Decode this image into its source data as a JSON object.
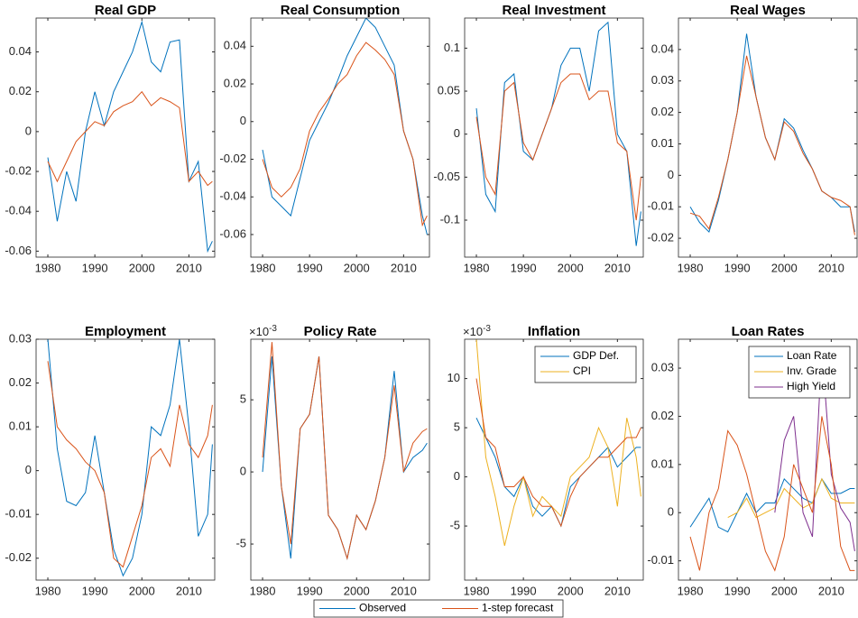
{
  "chart_data": [
    {
      "type": "line",
      "title": "Real GDP",
      "legend": "south outside",
      "x": [
        1980,
        1982,
        1984,
        1986,
        1988,
        1990,
        1992,
        1994,
        1996,
        1998,
        2000,
        2002,
        2004,
        2006,
        2008,
        2010,
        2012,
        2014,
        2015
      ],
      "xlim": [
        1977.5,
        2015.5
      ],
      "xticks": [
        1980,
        1990,
        2000,
        2010
      ],
      "ylim": [
        -0.063,
        0.057
      ],
      "yticks": [
        -0.06,
        -0.04,
        -0.02,
        0,
        0.02,
        0.04
      ],
      "series": [
        {
          "name": "Observed",
          "color": "#0072bd",
          "values": [
            -0.013,
            -0.045,
            -0.02,
            -0.035,
            0.0,
            0.02,
            0.003,
            0.02,
            0.03,
            0.04,
            0.055,
            0.035,
            0.03,
            0.045,
            0.046,
            -0.025,
            -0.015,
            -0.06,
            -0.055
          ]
        },
        {
          "name": "1-step forecast",
          "color": "#d95319",
          "values": [
            -0.015,
            -0.025,
            -0.015,
            -0.005,
            0.0,
            0.005,
            0.003,
            0.01,
            0.013,
            0.015,
            0.02,
            0.013,
            0.017,
            0.015,
            0.012,
            -0.025,
            -0.02,
            -0.027,
            -0.025
          ]
        }
      ]
    },
    {
      "type": "line",
      "title": "Real Consumption",
      "x": [
        1980,
        1982,
        1984,
        1986,
        1988,
        1990,
        1992,
        1994,
        1996,
        1998,
        2000,
        2002,
        2004,
        2006,
        2008,
        2010,
        2012,
        2014,
        2015
      ],
      "xlim": [
        1977.5,
        2015.5
      ],
      "xticks": [
        1980,
        1990,
        2000,
        2010
      ],
      "ylim": [
        -0.072,
        0.055
      ],
      "yticks": [
        -0.06,
        -0.04,
        -0.02,
        0,
        0.02,
        0.04
      ],
      "series": [
        {
          "color": "#0072bd",
          "values": [
            -0.015,
            -0.04,
            -0.045,
            -0.05,
            -0.03,
            -0.01,
            0.0,
            0.01,
            0.022,
            0.035,
            0.045,
            0.055,
            0.05,
            0.04,
            0.03,
            -0.005,
            -0.02,
            -0.05,
            -0.06
          ]
        },
        {
          "color": "#d95319",
          "values": [
            -0.02,
            -0.035,
            -0.04,
            -0.035,
            -0.025,
            -0.005,
            0.005,
            0.012,
            0.02,
            0.025,
            0.035,
            0.042,
            0.038,
            0.033,
            0.025,
            -0.005,
            -0.02,
            -0.055,
            -0.05
          ]
        }
      ]
    },
    {
      "type": "line",
      "title": "Real Investment",
      "x": [
        1980,
        1982,
        1984,
        1986,
        1988,
        1990,
        1992,
        1994,
        1996,
        1998,
        2000,
        2002,
        2004,
        2006,
        2008,
        2010,
        2012,
        2014,
        2015
      ],
      "xlim": [
        1977.5,
        2015.5
      ],
      "xticks": [
        1980,
        1990,
        2000,
        2010
      ],
      "ylim": [
        -0.143,
        0.135
      ],
      "yticks": [
        -0.1,
        -0.05,
        0,
        0.05,
        0.1
      ],
      "series": [
        {
          "color": "#0072bd",
          "values": [
            0.03,
            -0.07,
            -0.09,
            0.06,
            0.07,
            -0.02,
            -0.03,
            0.0,
            0.03,
            0.08,
            0.1,
            0.1,
            0.05,
            0.12,
            0.13,
            0.0,
            -0.02,
            -0.13,
            -0.09
          ]
        },
        {
          "color": "#d95319",
          "values": [
            0.02,
            -0.05,
            -0.07,
            0.05,
            0.06,
            -0.01,
            -0.03,
            0.0,
            0.03,
            0.06,
            0.07,
            0.07,
            0.04,
            0.05,
            0.05,
            -0.01,
            -0.02,
            -0.1,
            -0.05
          ]
        }
      ]
    },
    {
      "type": "line",
      "title": "Real Wages",
      "x": [
        1980,
        1982,
        1984,
        1986,
        1988,
        1990,
        1992,
        1994,
        1996,
        1998,
        2000,
        2002,
        2004,
        2006,
        2008,
        2010,
        2012,
        2014,
        2015
      ],
      "xlim": [
        1977.5,
        2015.5
      ],
      "xticks": [
        1980,
        1990,
        2000,
        2010
      ],
      "ylim": [
        -0.026,
        0.05
      ],
      "yticks": [
        -0.02,
        -0.01,
        0,
        0.01,
        0.02,
        0.03,
        0.04
      ],
      "series": [
        {
          "color": "#0072bd",
          "values": [
            -0.01,
            -0.015,
            -0.018,
            -0.008,
            0.005,
            0.02,
            0.045,
            0.025,
            0.012,
            0.005,
            0.018,
            0.015,
            0.008,
            0.002,
            -0.005,
            -0.007,
            -0.01,
            -0.01,
            -0.018
          ]
        },
        {
          "color": "#d95319",
          "values": [
            -0.012,
            -0.013,
            -0.017,
            -0.007,
            0.005,
            0.02,
            0.038,
            0.025,
            0.012,
            0.005,
            0.017,
            0.014,
            0.007,
            0.002,
            -0.005,
            -0.007,
            -0.008,
            -0.01,
            -0.019
          ]
        }
      ]
    },
    {
      "type": "line",
      "title": "Employment",
      "x": [
        1980,
        1982,
        1984,
        1986,
        1988,
        1990,
        1992,
        1994,
        1996,
        1998,
        2000,
        2002,
        2004,
        2006,
        2008,
        2010,
        2012,
        2014,
        2015
      ],
      "xlim": [
        1977.5,
        2015.5
      ],
      "xticks": [
        1980,
        1990,
        2000,
        2010
      ],
      "ylim": [
        -0.025,
        0.03
      ],
      "yticks": [
        -0.02,
        -0.01,
        0,
        0.01,
        0.02,
        0.03
      ],
      "series": [
        {
          "color": "#0072bd",
          "values": [
            0.03,
            0.005,
            -0.007,
            -0.008,
            -0.005,
            0.008,
            -0.005,
            -0.018,
            -0.024,
            -0.02,
            -0.01,
            0.01,
            0.008,
            0.015,
            0.03,
            0.01,
            -0.015,
            -0.01,
            0.006
          ]
        },
        {
          "color": "#d95319",
          "values": [
            0.025,
            0.01,
            0.007,
            0.005,
            0.002,
            0.0,
            -0.005,
            -0.02,
            -0.022,
            -0.015,
            -0.008,
            0.003,
            0.005,
            0.001,
            0.015,
            0.006,
            0.003,
            0.008,
            0.015
          ]
        }
      ]
    },
    {
      "type": "line",
      "title": "Policy Rate",
      "y_exponent": {
        "base": "×10",
        "power": "-3"
      },
      "x": [
        1980,
        1982,
        1984,
        1986,
        1988,
        1990,
        1992,
        1994,
        1996,
        1998,
        2000,
        2002,
        2004,
        2006,
        2008,
        2010,
        2012,
        2014,
        2015
      ],
      "xlim": [
        1977.5,
        2015.5
      ],
      "xticks": [
        1980,
        1990,
        2000,
        2010
      ],
      "ylim": [
        -7.5,
        9.2
      ],
      "yticks": [
        -5,
        0,
        5
      ],
      "series": [
        {
          "color": "#0072bd",
          "values": [
            0,
            8,
            -1,
            -6,
            3,
            4,
            8,
            -3,
            -4,
            -6,
            -3,
            -4,
            -2,
            1,
            7,
            0,
            1,
            1.5,
            2
          ]
        },
        {
          "color": "#d95319",
          "values": [
            1,
            9,
            -1,
            -5,
            3,
            4,
            8,
            -3,
            -4,
            -6,
            -3,
            -4,
            -2,
            1,
            6,
            0,
            2,
            2.8,
            3
          ]
        }
      ]
    },
    {
      "type": "line",
      "title": "Inflation",
      "y_exponent": {
        "base": "×10",
        "power": "-3"
      },
      "legend": "upper right",
      "x": [
        1980,
        1982,
        1984,
        1986,
        1988,
        1990,
        1992,
        1994,
        1996,
        1998,
        2000,
        2002,
        2004,
        2006,
        2008,
        2010,
        2012,
        2014,
        2015
      ],
      "xlim": [
        1977.5,
        2015.5
      ],
      "xticks": [
        1980,
        1990,
        2000,
        2010
      ],
      "ylim": [
        -10.5,
        14
      ],
      "yticks": [
        -5,
        0,
        5,
        10
      ],
      "series": [
        {
          "name": "GDP Def.",
          "color": "#0072bd",
          "values": [
            6,
            4,
            2,
            -1,
            -2,
            0,
            -3,
            -4,
            -3,
            -5,
            -1,
            0,
            1,
            2,
            3,
            1,
            2,
            3,
            3
          ]
        },
        {
          "name": "CPI",
          "color": "#edb120",
          "values": [
            14,
            2,
            -2,
            -7,
            -3,
            0,
            -4,
            -2,
            -3,
            -4,
            0,
            1,
            2,
            5,
            3,
            -3,
            6,
            2,
            -2
          ]
        },
        {
          "color": "#d95319",
          "values": [
            10,
            4,
            3,
            -1,
            -1,
            0,
            -2,
            -3,
            -3,
            -5,
            -2,
            0,
            1,
            2,
            2,
            3,
            4,
            4,
            5
          ]
        }
      ]
    },
    {
      "type": "line",
      "title": "Loan Rates",
      "legend": "upper right",
      "x": [
        1980,
        1982,
        1984,
        1986,
        1988,
        1990,
        1992,
        1994,
        1996,
        1998,
        2000,
        2002,
        2004,
        2006,
        2008,
        2010,
        2012,
        2014,
        2015
      ],
      "xlim": [
        1977.5,
        2015.5
      ],
      "xticks": [
        1980,
        1990,
        2000,
        2010
      ],
      "ylim": [
        -0.014,
        0.036
      ],
      "yticks": [
        -0.01,
        0,
        0.01,
        0.02,
        0.03
      ],
      "series": [
        {
          "name": "Loan Rate",
          "color": "#0072bd",
          "values": [
            -0.003,
            0.0,
            0.003,
            -0.003,
            -0.004,
            0.0,
            0.004,
            0.0,
            0.002,
            0.002,
            0.007,
            0.005,
            0.003,
            0.002,
            0.007,
            0.004,
            0.004,
            0.005,
            0.005
          ]
        },
        {
          "name": "Inv. Grade",
          "color": "#edb120",
          "values": [
            null,
            null,
            null,
            null,
            -0.001,
            0.0,
            0.003,
            -0.001,
            0.0,
            0.001,
            0.005,
            0.003,
            0.001,
            0.002,
            0.007,
            0.003,
            0.002,
            0.002,
            0.002
          ]
        },
        {
          "name": "High Yield",
          "color": "#7e2f8e",
          "values": [
            null,
            null,
            null,
            null,
            null,
            null,
            null,
            null,
            null,
            0.0,
            0.015,
            0.02,
            0.0,
            -0.005,
            0.034,
            0.008,
            0.001,
            -0.002,
            -0.008
          ]
        },
        {
          "color": "#d95319",
          "values": [
            -0.005,
            -0.012,
            0.0,
            0.005,
            0.017,
            0.014,
            0.008,
            0.0,
            -0.008,
            -0.012,
            -0.005,
            0.01,
            0.005,
            0.0,
            0.02,
            0.01,
            -0.007,
            -0.012,
            -0.012
          ]
        }
      ]
    }
  ]
}
